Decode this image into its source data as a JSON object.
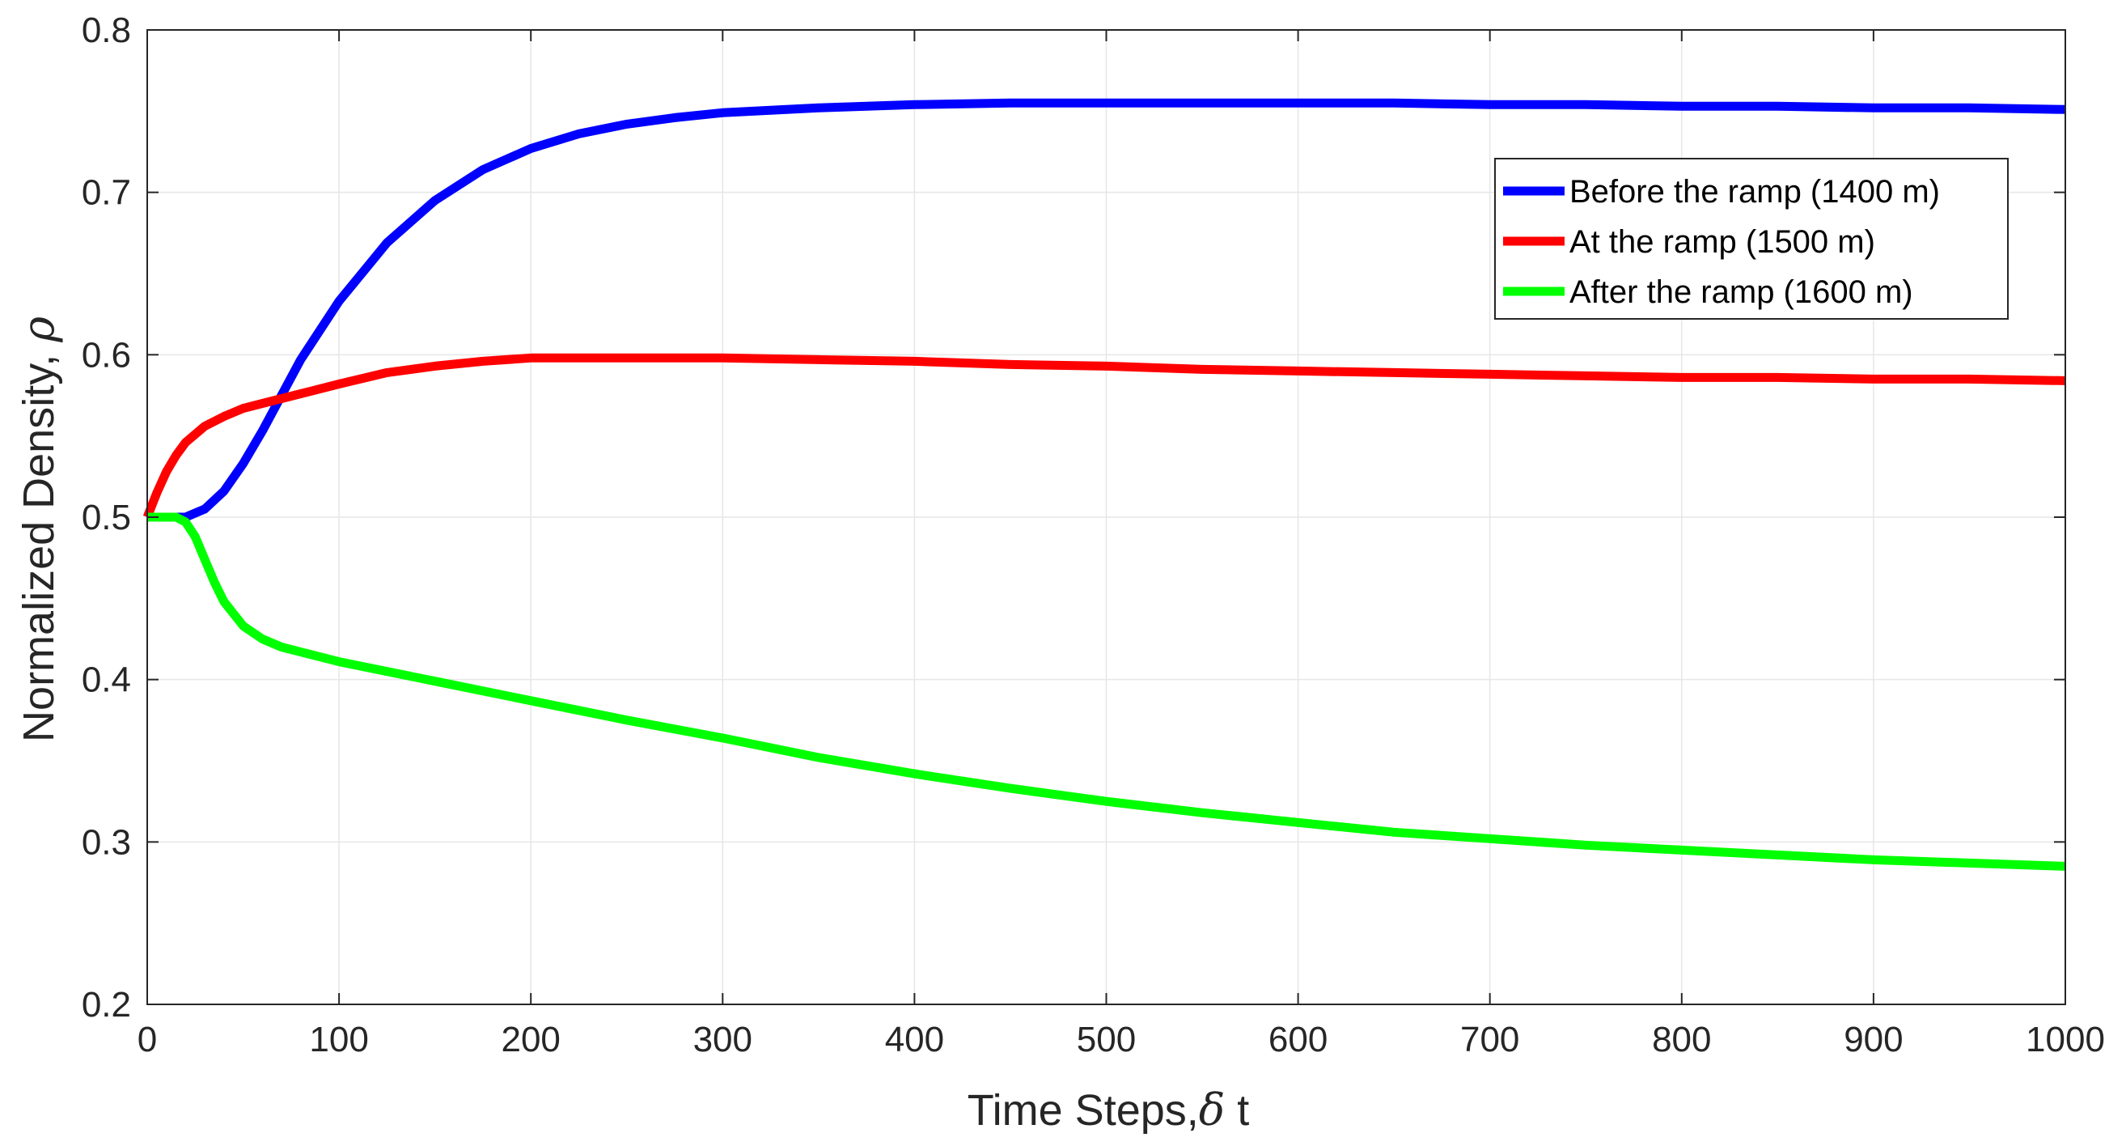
{
  "chart_data": {
    "type": "line",
    "title": "",
    "xlabel": "Time Steps,",
    "xlabel_symbol": "δ",
    "xlabel_suffix": " t",
    "ylabel": "Normalized Density,",
    "ylabel_symbol": "ρ",
    "xlim": [
      0,
      1000
    ],
    "ylim": [
      0.2,
      0.8
    ],
    "xticks": [
      0,
      100,
      200,
      300,
      400,
      500,
      600,
      700,
      800,
      900,
      1000
    ],
    "xtick_labels": [
      "0",
      "100",
      "200",
      "300",
      "400",
      "500",
      "600",
      "700",
      "800",
      "900",
      "1000"
    ],
    "yticks": [
      0.2,
      0.3,
      0.4,
      0.5,
      0.6,
      0.7,
      0.8
    ],
    "ytick_labels": [
      "0.2",
      "0.3",
      "0.4",
      "0.5",
      "0.6",
      "0.7",
      "0.8"
    ],
    "grid": true,
    "legend_position": "top-right",
    "series": [
      {
        "name": "Before the ramp (1400 m)",
        "color": "#0000ff",
        "x": [
          0,
          10,
          20,
          30,
          40,
          50,
          60,
          70,
          80,
          100,
          125,
          150,
          175,
          200,
          225,
          250,
          275,
          300,
          350,
          400,
          450,
          500,
          550,
          600,
          650,
          700,
          750,
          800,
          850,
          900,
          950,
          1000
        ],
        "y": [
          0.5,
          0.5,
          0.5,
          0.505,
          0.516,
          0.533,
          0.553,
          0.575,
          0.597,
          0.633,
          0.669,
          0.695,
          0.714,
          0.727,
          0.736,
          0.742,
          0.746,
          0.749,
          0.752,
          0.754,
          0.755,
          0.755,
          0.755,
          0.755,
          0.755,
          0.754,
          0.754,
          0.753,
          0.753,
          0.752,
          0.752,
          0.751
        ]
      },
      {
        "name": "At the ramp (1500 m)",
        "color": "#ff0000",
        "x": [
          0,
          5,
          10,
          15,
          20,
          30,
          40,
          50,
          60,
          70,
          80,
          100,
          125,
          150,
          175,
          200,
          225,
          250,
          275,
          300,
          350,
          400,
          450,
          500,
          550,
          600,
          650,
          700,
          750,
          800,
          850,
          900,
          950,
          1000
        ],
        "y": [
          0.5,
          0.515,
          0.528,
          0.538,
          0.546,
          0.556,
          0.562,
          0.567,
          0.57,
          0.573,
          0.576,
          0.582,
          0.589,
          0.593,
          0.596,
          0.598,
          0.598,
          0.598,
          0.598,
          0.598,
          0.597,
          0.596,
          0.594,
          0.593,
          0.591,
          0.59,
          0.589,
          0.588,
          0.587,
          0.586,
          0.586,
          0.585,
          0.585,
          0.584
        ]
      },
      {
        "name": "After the ramp (1600 m)",
        "color": "#00ff00",
        "x": [
          0,
          10,
          15,
          20,
          25,
          30,
          35,
          40,
          50,
          60,
          70,
          80,
          100,
          150,
          200,
          250,
          300,
          350,
          400,
          450,
          500,
          550,
          600,
          650,
          700,
          750,
          800,
          850,
          900,
          950,
          1000
        ],
        "y": [
          0.5,
          0.5,
          0.5,
          0.497,
          0.488,
          0.474,
          0.46,
          0.448,
          0.433,
          0.425,
          0.42,
          0.417,
          0.411,
          0.399,
          0.387,
          0.375,
          0.364,
          0.352,
          0.342,
          0.333,
          0.325,
          0.318,
          0.312,
          0.306,
          0.302,
          0.298,
          0.295,
          0.292,
          0.289,
          0.287,
          0.285
        ]
      }
    ]
  }
}
